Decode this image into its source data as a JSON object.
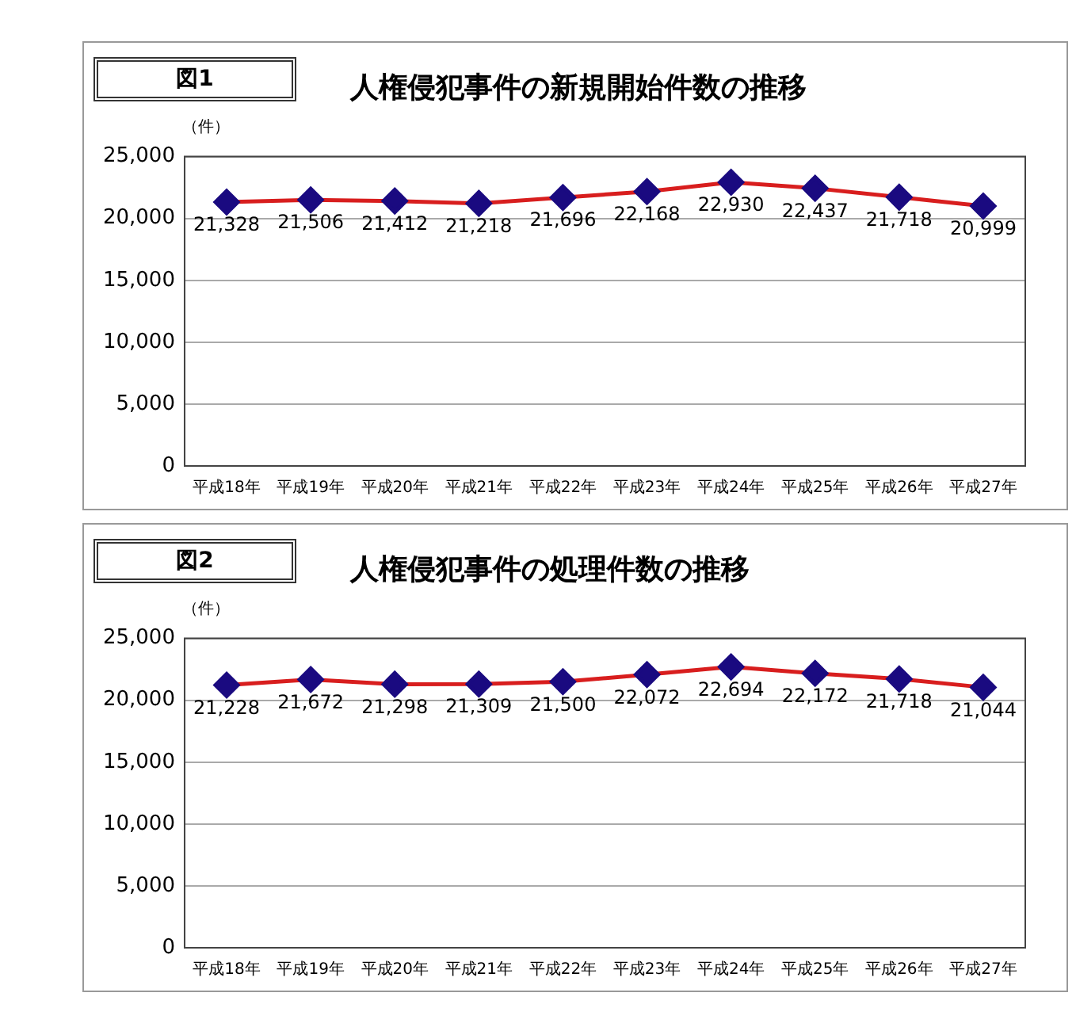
{
  "chart_data": [
    {
      "type": "line",
      "title": "人権侵犯事件の新規開始件数の推移",
      "annotations": [
        "図1"
      ],
      "ylabel": "（件）",
      "categories": [
        "平成18年",
        "平成19年",
        "平成20年",
        "平成21年",
        "平成22年",
        "平成23年",
        "平成24年",
        "平成25年",
        "平成26年",
        "平成27年"
      ],
      "series": [
        {
          "color": "#d81e1e",
          "values": [
            21328,
            21506,
            21412,
            21218,
            21696,
            22168,
            22930,
            22437,
            21718,
            20999
          ],
          "value_labels": [
            "21,328",
            "21,506",
            "21,412",
            "21,218",
            "21,696",
            "22,168",
            "22,930",
            "22,437",
            "21,718",
            "20,999"
          ]
        }
      ],
      "ylim": [
        0,
        25000
      ],
      "yticks": [
        0,
        {
          "value": 5000,
          "label": "5,000"
        },
        {
          "value": 10000,
          "label": "10,000"
        },
        {
          "value": 15000,
          "label": "15,000"
        },
        {
          "value": 20000,
          "label": "20,000"
        },
        {
          "value": 25000,
          "label": "25,000"
        }
      ],
      "grid": "y",
      "legend": false,
      "marker": "diamond",
      "line_style": "solid"
    },
    {
      "type": "line",
      "title": "人権侵犯事件の処理件数の推移",
      "annotations": [
        "図2"
      ],
      "ylabel": "（件）",
      "categories": [
        "平成18年",
        "平成19年",
        "平成20年",
        "平成21年",
        "平成22年",
        "平成23年",
        "平成24年",
        "平成25年",
        "平成26年",
        "平成27年"
      ],
      "series": [
        {
          "color": "#d81e1e",
          "values": [
            21228,
            21672,
            21298,
            21309,
            21500,
            22072,
            22694,
            22172,
            21718,
            21044
          ],
          "value_labels": [
            "21,228",
            "21,672",
            "21,298",
            "21,309",
            "21,500",
            "22,072",
            "22,694",
            "22,172",
            "21,718",
            "21,044"
          ]
        }
      ],
      "ylim": [
        0,
        25000
      ],
      "yticks": [
        0,
        {
          "value": 5000,
          "label": "5,000"
        },
        {
          "value": 10000,
          "label": "10,000"
        },
        {
          "value": 15000,
          "label": "15,000"
        },
        {
          "value": 20000,
          "label": "20,000"
        },
        {
          "value": 25000,
          "label": "25,000"
        }
      ],
      "grid": "y",
      "legend": false,
      "marker": "diamond",
      "line_style": "solid"
    }
  ]
}
